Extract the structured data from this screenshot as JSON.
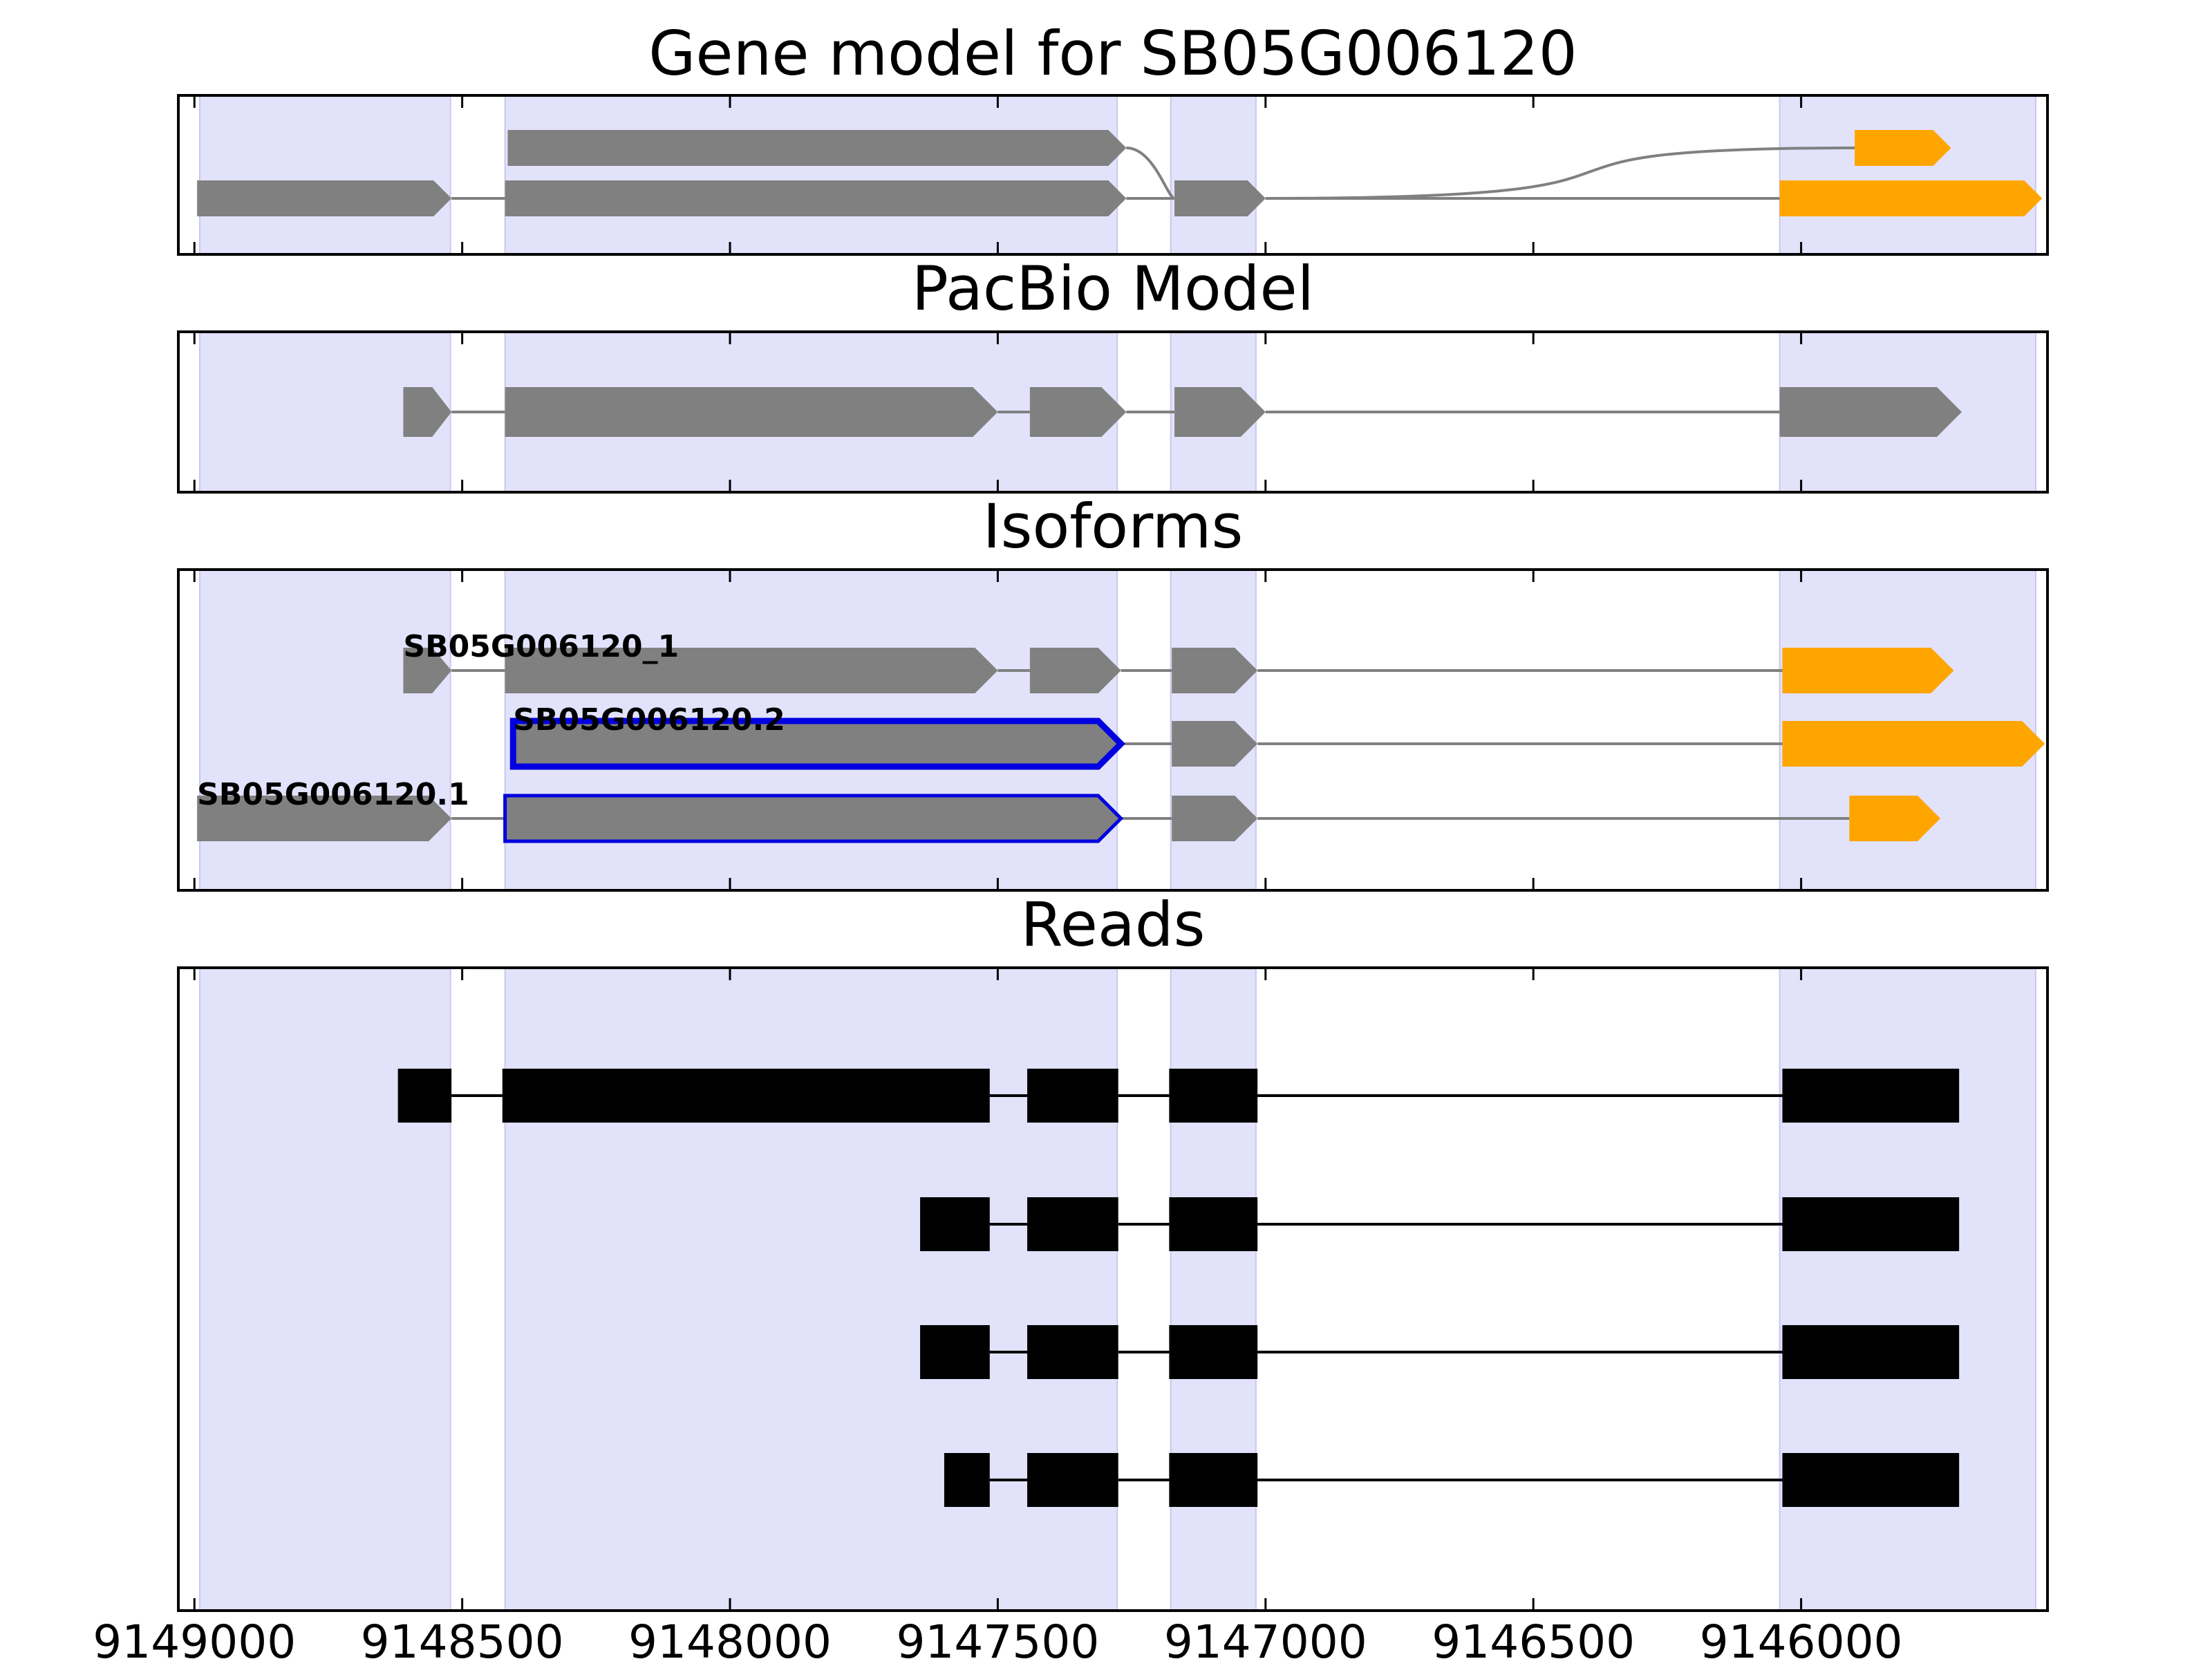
{
  "chart_data": {
    "type": "gene-model",
    "x_direction": "reversed",
    "xlim": [
      9149030,
      9145540
    ],
    "xticks": [
      9149000,
      9148500,
      9148000,
      9147500,
      9147000,
      9146500,
      9146000
    ],
    "xtick_labels": [
      "9149000",
      "9148500",
      "9148000",
      "9147500",
      "9147000",
      "9146500",
      "9146000"
    ],
    "colors": {
      "shade": "#e2e2fb",
      "exon": "#808080",
      "utr": "#ffa500",
      "highlight_border": "#0000e0",
      "read": "#000000",
      "intron": "#808080"
    },
    "shaded_regions": [
      [
        9148990,
        9148522
      ],
      [
        9148420,
        9147277
      ],
      [
        9147177,
        9147018
      ],
      [
        9146040,
        9145562
      ]
    ],
    "panels": [
      {
        "title": "Gene model for SB05G006120",
        "tracks": [
          {
            "label": "",
            "exons": [
              {
                "start": 9148415,
                "end": 9147260,
                "color": "exon",
                "row": "upper"
              },
              {
                "start": 9145900,
                "end": 9145720,
                "color": "utr",
                "row": "upper"
              }
            ],
            "note": "upper isoform joined to lower row by curved connectors"
          },
          {
            "label": "",
            "exons": [
              {
                "start": 9148995,
                "end": 9148520,
                "color": "exon"
              },
              {
                "start": 9148420,
                "end": 9147260,
                "color": "exon"
              },
              {
                "start": 9147170,
                "end": 9147000,
                "color": "exon"
              },
              {
                "start": 9146040,
                "end": 9145550,
                "color": "utr"
              }
            ]
          }
        ]
      },
      {
        "title": "PacBio Model",
        "tracks": [
          {
            "label": "",
            "exons": [
              {
                "start": 9148610,
                "end": 9148520,
                "color": "exon"
              },
              {
                "start": 9148420,
                "end": 9147500,
                "color": "exon"
              },
              {
                "start": 9147440,
                "end": 9147260,
                "color": "exon"
              },
              {
                "start": 9147170,
                "end": 9147000,
                "color": "exon"
              },
              {
                "start": 9146040,
                "end": 9145700,
                "color": "exon"
              }
            ]
          }
        ]
      },
      {
        "title": "Isoforms",
        "tracks": [
          {
            "label": "SB05G006120_1",
            "exons": [
              {
                "start": 9148610,
                "end": 9148520,
                "color": "exon"
              },
              {
                "start": 9148420,
                "end": 9147500,
                "color": "exon"
              },
              {
                "start": 9147440,
                "end": 9147270,
                "color": "exon"
              },
              {
                "start": 9147175,
                "end": 9147015,
                "color": "exon"
              },
              {
                "start": 9146035,
                "end": 9145715,
                "color": "utr"
              }
            ]
          },
          {
            "label": "SB05G006120.2",
            "exons": [
              {
                "start": 9148405,
                "end": 9147270,
                "color": "exon",
                "highlight": true
              },
              {
                "start": 9147175,
                "end": 9147015,
                "color": "exon"
              },
              {
                "start": 9146035,
                "end": 9145545,
                "color": "utr"
              }
            ]
          },
          {
            "label": "SB05G006120.1",
            "exons": [
              {
                "start": 9148995,
                "end": 9148520,
                "color": "exon"
              },
              {
                "start": 9148420,
                "end": 9147270,
                "color": "exon",
                "highlight": true
              },
              {
                "start": 9147175,
                "end": 9147015,
                "color": "exon"
              },
              {
                "start": 9145910,
                "end": 9145740,
                "color": "utr"
              }
            ]
          }
        ]
      },
      {
        "title": "Reads",
        "tracks": [
          {
            "label": "",
            "exons": [
              [
                9148620,
                9148520
              ],
              [
                9148425,
                9147515
              ],
              [
                9147445,
                9147275
              ],
              [
                9147180,
                9147015
              ],
              [
                9146035,
                9145705
              ]
            ]
          },
          {
            "label": "",
            "exons": [
              [
                9147645,
                9147515
              ],
              [
                9147445,
                9147275
              ],
              [
                9147180,
                9147015
              ],
              [
                9146035,
                9145705
              ]
            ]
          },
          {
            "label": "",
            "exons": [
              [
                9147645,
                9147515
              ],
              [
                9147445,
                9147275
              ],
              [
                9147180,
                9147015
              ],
              [
                9146035,
                9145705
              ]
            ]
          },
          {
            "label": "",
            "exons": [
              [
                9147600,
                9147515
              ],
              [
                9147445,
                9147275
              ],
              [
                9147180,
                9147015
              ],
              [
                9146035,
                9145705
              ]
            ]
          }
        ]
      }
    ]
  }
}
